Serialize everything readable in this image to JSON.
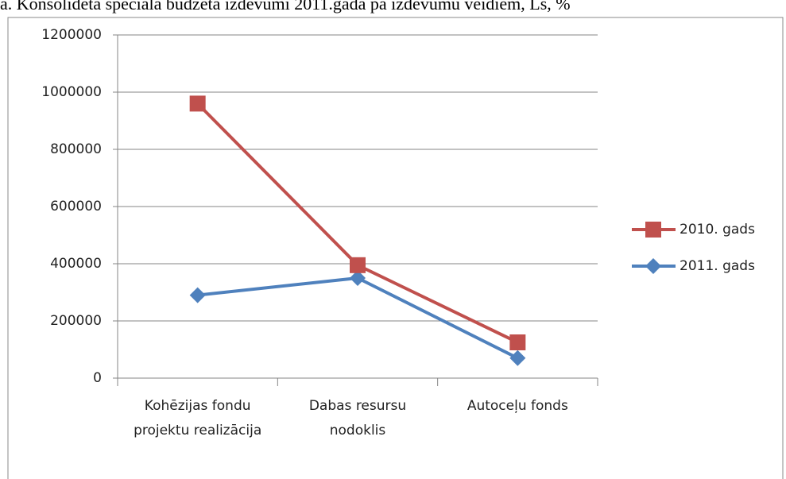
{
  "chart_data": {
    "type": "line",
    "title": "a. Konsolidētā speciālā budžeta izdevumi 2011.gadā pa izdevumu veidiem, Ls, %",
    "categories": [
      "Kohēzijas fondu projektu realizācija",
      "Dabas resursu nodoklis",
      "Autoceļu fonds"
    ],
    "series": [
      {
        "name": "2010. gads",
        "color": "#c0504d",
        "marker": "square",
        "values": [
          960000,
          395000,
          125000
        ]
      },
      {
        "name": "2011. gads",
        "color": "#4f81bd",
        "marker": "diamond",
        "values": [
          290000,
          350000,
          70000
        ]
      }
    ],
    "ylim": [
      0,
      1200000
    ],
    "yticks": [
      0,
      200000,
      400000,
      600000,
      800000,
      1000000,
      1200000
    ],
    "grid": true,
    "legend": "right"
  }
}
